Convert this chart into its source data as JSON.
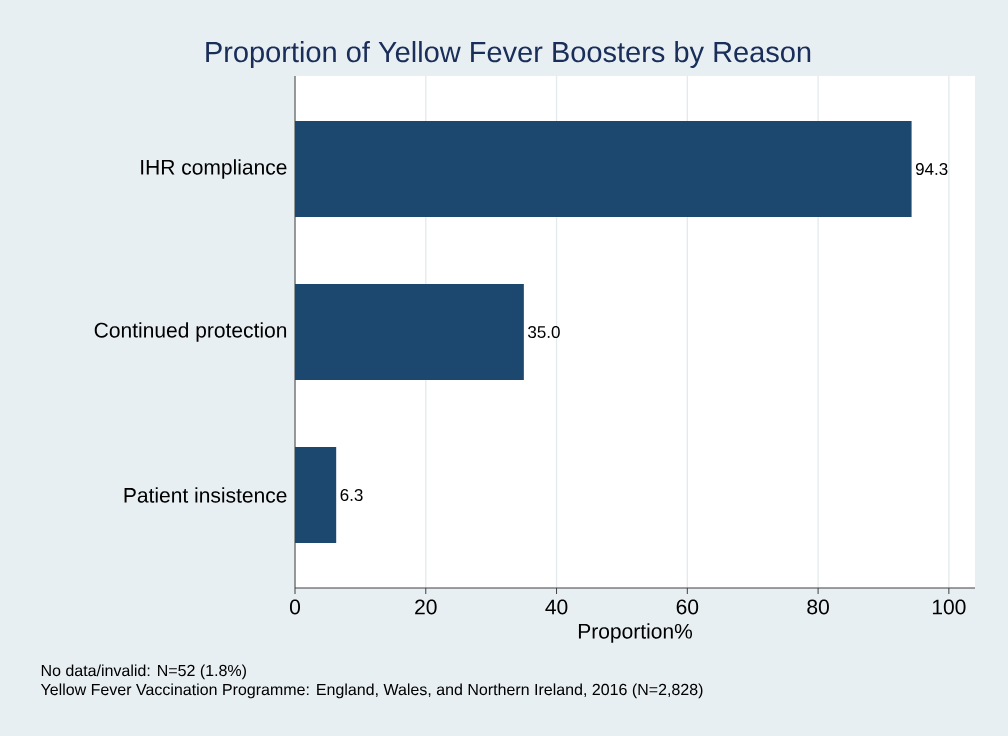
{
  "chart_data": {
    "type": "bar",
    "orientation": "horizontal",
    "title": "Proportion of Yellow Fever Boosters by Reason",
    "categories": [
      "IHR compliance",
      "Continued protection",
      "Patient insistence"
    ],
    "values": [
      94.3,
      35.0,
      6.3
    ],
    "value_labels": [
      "94.3",
      "35.0",
      "6.3"
    ],
    "color": "#1c4870",
    "xlabel": "Proportion%",
    "xlim": [
      0,
      104
    ],
    "xticks": [
      0,
      20,
      40,
      60,
      80,
      100
    ],
    "grid": "x",
    "annotations": [
      "No data/invalid: N=52 (1.8%)",
      "Yellow Fever Vaccination Programme: England, Wales, and Northern Ireland, 2016 (N=2,828)"
    ]
  }
}
